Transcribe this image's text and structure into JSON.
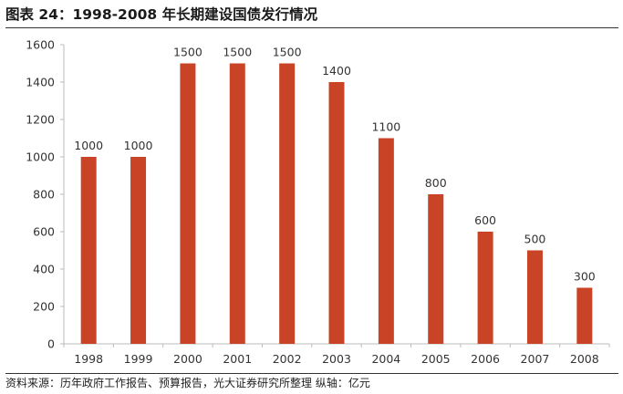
{
  "header": {
    "title": "图表 24：1998-2008 年长期建设国债发行情况"
  },
  "footer": {
    "source": "资料来源：历年政府工作报告、预算报告，光大证券研究所整理 纵轴：亿元"
  },
  "colors": {
    "bar": "#c94426",
    "axis": "#bbbbbb"
  },
  "chart_data": {
    "type": "bar",
    "categories": [
      "1998",
      "1999",
      "2000",
      "2001",
      "2002",
      "2003",
      "2004",
      "2005",
      "2006",
      "2007",
      "2008"
    ],
    "values": [
      1000,
      1000,
      1500,
      1500,
      1500,
      1400,
      1100,
      800,
      600,
      500,
      300
    ],
    "data_labels": [
      "1000",
      "1000",
      "1500",
      "1500",
      "1500",
      "1400",
      "1100",
      "800",
      "600",
      "500",
      "300"
    ],
    "yticks": [
      "0",
      "200",
      "400",
      "600",
      "800",
      "1000",
      "1200",
      "1400",
      "1600"
    ],
    "ylim": [
      0,
      1600
    ],
    "grid": false,
    "legend": "none"
  }
}
